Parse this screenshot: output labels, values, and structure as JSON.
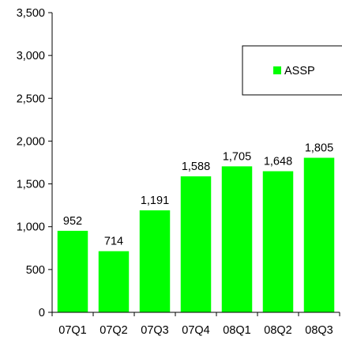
{
  "chart_data": {
    "type": "bar",
    "categories": [
      "07Q1",
      "07Q2",
      "07Q3",
      "07Q4",
      "08Q1",
      "08Q2",
      "08Q3"
    ],
    "series": [
      {
        "name": "ASSP",
        "values": [
          952,
          714,
          1191,
          1588,
          1705,
          1648,
          1805
        ],
        "value_labels": [
          "952",
          "714",
          "1,191",
          "1,588",
          "1,705",
          "1,648",
          "1,805"
        ],
        "color": "#00ff00"
      }
    ],
    "ylim": [
      0,
      3500
    ],
    "y_ticks": [
      0,
      500,
      1000,
      1500,
      2000,
      2500,
      3000,
      3500
    ],
    "y_tick_labels": [
      "0",
      "500",
      "1,000",
      "1,500",
      "2,000",
      "2,500",
      "3,000",
      "3,500"
    ],
    "legend": {
      "placement": "top-right",
      "entries": [
        "ASSP"
      ]
    },
    "grid": false,
    "title": "",
    "xlabel": "",
    "ylabel": ""
  }
}
